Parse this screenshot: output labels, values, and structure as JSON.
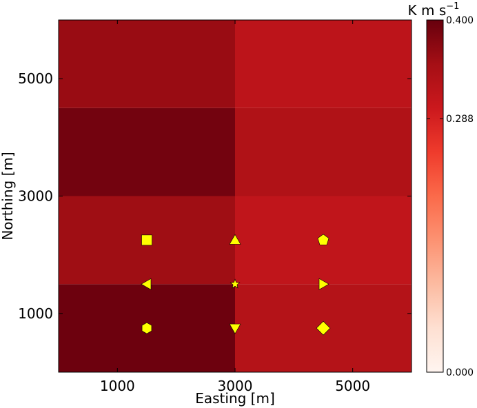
{
  "chart_data": {
    "type": "heatmap",
    "xlabel": "Easting [m]",
    "ylabel": "Northing [m]",
    "xlim": [
      0,
      6000
    ],
    "ylim": [
      0,
      6000
    ],
    "x_ticks": [
      1000,
      3000,
      5000
    ],
    "y_ticks": [
      1000,
      3000,
      5000
    ],
    "x_edges": [
      0,
      3000,
      6000
    ],
    "y_edges": [
      0,
      1500,
      3000,
      4500,
      6000
    ],
    "values": [
      [
        0.395,
        0.33
      ],
      [
        0.355,
        0.315
      ],
      [
        0.39,
        0.335
      ],
      [
        0.36,
        0.32
      ]
    ],
    "colormap": "Reds",
    "colorbar": {
      "unit_label": "K m s",
      "unit_exponent": "−1",
      "min": 0.0,
      "max": 0.4,
      "ticks": [
        0.0,
        0.288,
        0.4
      ],
      "tick_labels": [
        "0.000",
        "0.288",
        "0.400"
      ]
    },
    "markers": [
      {
        "x": 1500,
        "y": 2250,
        "shape": "square"
      },
      {
        "x": 3000,
        "y": 2250,
        "shape": "triangle-up"
      },
      {
        "x": 4500,
        "y": 2250,
        "shape": "pentagon"
      },
      {
        "x": 1500,
        "y": 1500,
        "shape": "triangle-left"
      },
      {
        "x": 3000,
        "y": 1500,
        "shape": "star"
      },
      {
        "x": 4500,
        "y": 1500,
        "shape": "triangle-right"
      },
      {
        "x": 1500,
        "y": 750,
        "shape": "hexagon"
      },
      {
        "x": 3000,
        "y": 750,
        "shape": "triangle-down"
      },
      {
        "x": 4500,
        "y": 750,
        "shape": "diamond"
      }
    ],
    "marker_color": "#ffff00",
    "grid": false
  }
}
